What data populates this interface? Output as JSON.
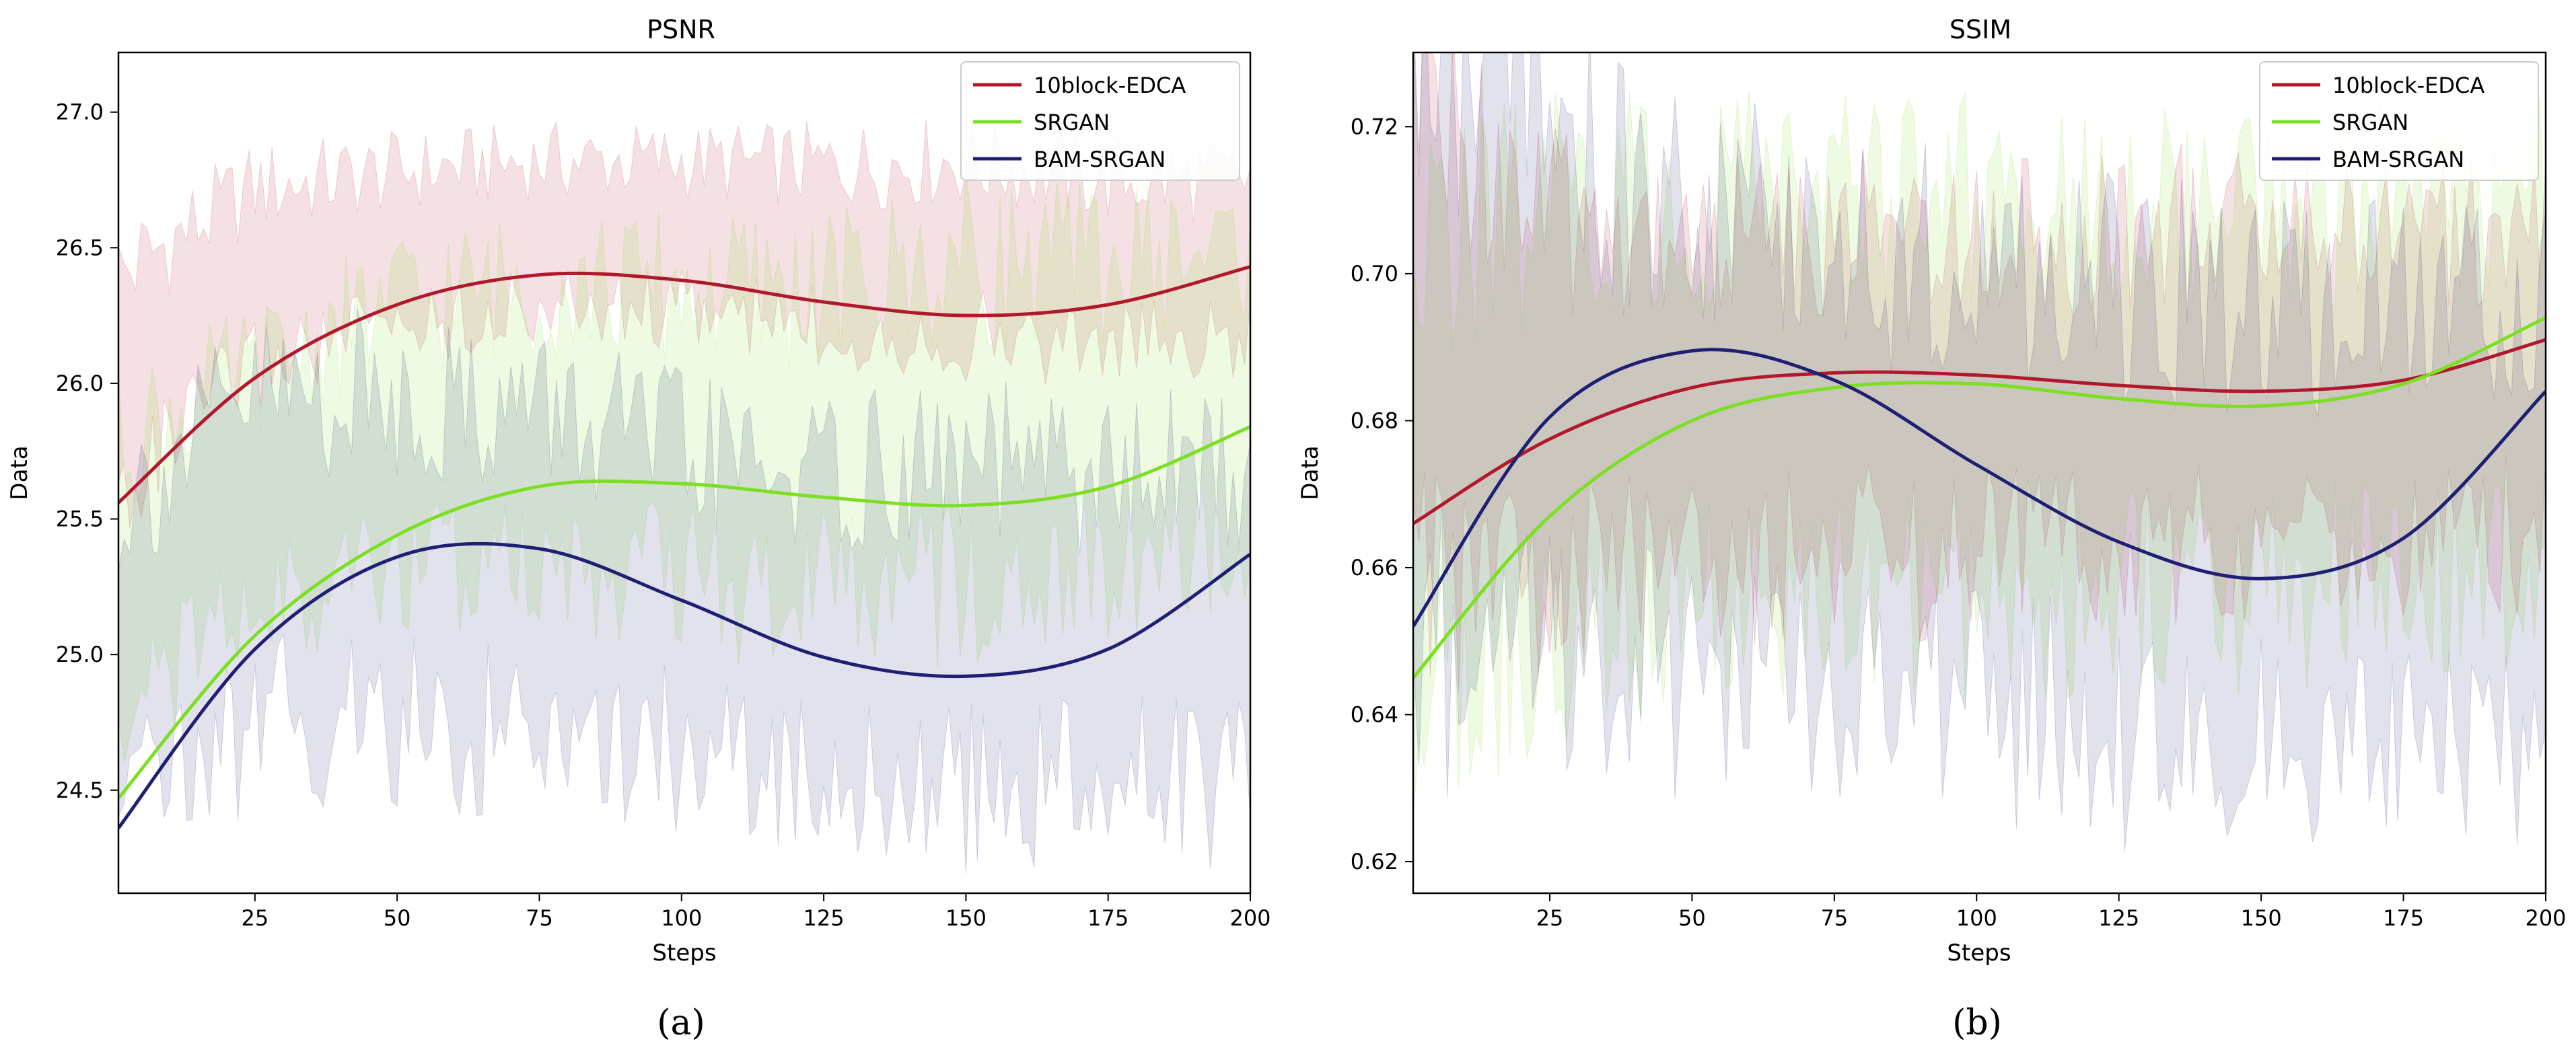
{
  "chart_data": [
    {
      "type": "line",
      "title": "PSNR",
      "caption": "(a)",
      "xlabel": "Steps",
      "ylabel": "Data",
      "xlim": [
        1,
        200
      ],
      "ylim": [
        24.12,
        27.22
      ],
      "xticks": [
        25,
        50,
        75,
        100,
        125,
        150,
        175,
        200
      ],
      "yticks": [
        24.5,
        25.0,
        25.5,
        26.0,
        26.5,
        27.0
      ],
      "ytick_labels": [
        "24.5",
        "25.0",
        "25.5",
        "26.0",
        "26.5",
        "27.0"
      ],
      "legend_position": "top-right",
      "series": [
        {
          "name": "10block-EDCA",
          "color": "#b2182b",
          "x": [
            1,
            25,
            50,
            75,
            100,
            125,
            150,
            175,
            200
          ],
          "trend": [
            25.56,
            26.02,
            26.29,
            26.4,
            26.38,
            26.3,
            26.25,
            26.29,
            26.43
          ],
          "band_center": [
            26.0,
            26.4,
            26.5,
            26.55,
            26.55,
            26.5,
            26.5,
            26.45,
            26.45
          ],
          "band_halfwidth": [
            0.4,
            0.32,
            0.28,
            0.27,
            0.27,
            0.3,
            0.32,
            0.3,
            0.3
          ]
        },
        {
          "name": "SRGAN",
          "color": "#7be021",
          "x": [
            1,
            25,
            50,
            75,
            100,
            125,
            150,
            175,
            200
          ],
          "trend": [
            24.47,
            25.07,
            25.44,
            25.62,
            25.63,
            25.58,
            25.55,
            25.62,
            25.84
          ],
          "band_center": [
            25.3,
            25.6,
            25.8,
            25.85,
            25.8,
            25.8,
            25.85,
            25.9,
            25.95
          ],
          "band_halfwidth": [
            0.5,
            0.45,
            0.5,
            0.52,
            0.55,
            0.55,
            0.6,
            0.55,
            0.55
          ]
        },
        {
          "name": "BAM-SRGAN",
          "color": "#1f1f73",
          "x": [
            1,
            25,
            50,
            75,
            100,
            125,
            150,
            175,
            200
          ],
          "trend": [
            24.36,
            25.02,
            25.36,
            25.39,
            25.2,
            24.99,
            24.92,
            25.02,
            25.37
          ],
          "band_center": [
            25.0,
            25.35,
            25.35,
            25.3,
            25.2,
            25.1,
            25.1,
            25.1,
            25.1
          ],
          "band_halfwidth": [
            0.55,
            0.6,
            0.6,
            0.6,
            0.55,
            0.55,
            0.6,
            0.55,
            0.6
          ]
        }
      ]
    },
    {
      "type": "line",
      "title": "SSIM",
      "caption": "(b)",
      "xlabel": "Steps",
      "ylabel": "Data",
      "xlim": [
        1,
        200
      ],
      "ylim": [
        0.6157,
        0.7301
      ],
      "xticks": [
        25,
        50,
        75,
        100,
        125,
        150,
        175,
        200
      ],
      "yticks": [
        0.62,
        0.64,
        0.66,
        0.68,
        0.7,
        0.72
      ],
      "ytick_labels": [
        "0.62",
        "0.64",
        "0.66",
        "0.68",
        "0.70",
        "0.72"
      ],
      "legend_position": "top-right",
      "series": [
        {
          "name": "10block-EDCA",
          "color": "#b2182b",
          "x": [
            1,
            25,
            50,
            75,
            100,
            125,
            150,
            175,
            200
          ],
          "trend": [
            0.666,
            0.6775,
            0.6845,
            0.6865,
            0.6862,
            0.6848,
            0.684,
            0.6855,
            0.691
          ],
          "band_center": [
            0.69,
            0.683,
            0.683,
            0.684,
            0.684,
            0.684,
            0.684,
            0.685,
            0.686
          ],
          "band_halfwidth": [
            0.035,
            0.024,
            0.022,
            0.022,
            0.022,
            0.022,
            0.022,
            0.021,
            0.021
          ]
        },
        {
          "name": "SRGAN",
          "color": "#7be021",
          "x": [
            1,
            25,
            50,
            75,
            100,
            125,
            150,
            175,
            200
          ],
          "trend": [
            0.645,
            0.667,
            0.68,
            0.6845,
            0.685,
            0.683,
            0.682,
            0.685,
            0.694
          ],
          "band_center": [
            0.672,
            0.68,
            0.682,
            0.683,
            0.683,
            0.683,
            0.683,
            0.684,
            0.684
          ],
          "band_halfwidth": [
            0.03,
            0.03,
            0.028,
            0.028,
            0.027,
            0.027,
            0.026,
            0.026,
            0.026
          ]
        },
        {
          "name": "BAM-SRGAN",
          "color": "#1f1f73",
          "x": [
            1,
            25,
            50,
            75,
            100,
            125,
            150,
            175,
            200
          ],
          "trend": [
            0.652,
            0.6805,
            0.6895,
            0.6855,
            0.674,
            0.6635,
            0.6585,
            0.664,
            0.684
          ],
          "band_center": [
            0.69,
            0.685,
            0.676,
            0.674,
            0.672,
            0.668,
            0.665,
            0.664,
            0.664
          ],
          "band_halfwidth": [
            0.04,
            0.036,
            0.032,
            0.03,
            0.03,
            0.03,
            0.03,
            0.03,
            0.03
          ]
        }
      ]
    }
  ]
}
